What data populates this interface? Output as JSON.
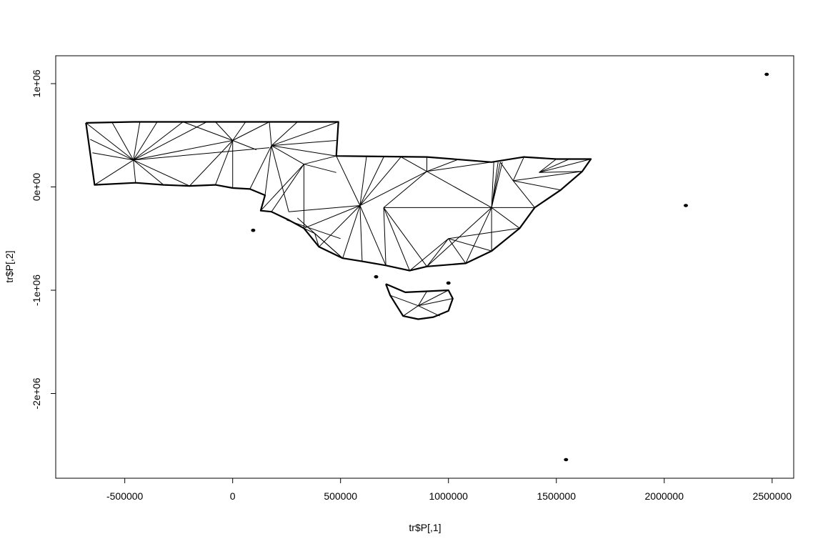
{
  "chart_data": {
    "type": "line",
    "title": "",
    "xlabel": "tr$P[,1]",
    "ylabel": "tr$P[,2]",
    "xlim": [
      -820000,
      2600000
    ],
    "ylim": [
      -2820000,
      1270000
    ],
    "x_ticks": [
      {
        "value": -500000,
        "label": "-500000"
      },
      {
        "value": 0,
        "label": "0"
      },
      {
        "value": 500000,
        "label": "500000"
      },
      {
        "value": 1000000,
        "label": "1000000"
      },
      {
        "value": 1500000,
        "label": "1500000"
      },
      {
        "value": 2000000,
        "label": "2000000"
      },
      {
        "value": 2500000,
        "label": "2500000"
      }
    ],
    "y_ticks": [
      {
        "value": 1000000,
        "label": "1e+06"
      },
      {
        "value": 0,
        "label": "0e+00"
      },
      {
        "value": -1000000,
        "label": "-1e+06"
      },
      {
        "value": -2000000,
        "label": "-2e+06"
      }
    ],
    "grid": false,
    "legend": "none",
    "line_color": "#000000",
    "series": [
      {
        "part": "mainland-outline",
        "x": [
          -680000,
          -460000,
          -230000,
          170000,
          490000,
          480000,
          900000,
          1200000,
          1350000,
          1500000,
          1560000,
          1660000,
          1620000,
          1520000,
          1400000,
          1330000,
          1200000,
          1080000,
          900000,
          820000,
          710000,
          600000,
          510000,
          400000,
          330000,
          260000,
          180000,
          130000,
          150000,
          80000,
          0,
          -80000,
          -200000,
          -320000,
          -450000,
          -640000,
          -680000
        ],
        "y": [
          620000,
          630000,
          630000,
          630000,
          630000,
          300000,
          290000,
          240000,
          290000,
          270000,
          270000,
          270000,
          150000,
          -30000,
          -200000,
          -400000,
          -620000,
          -740000,
          -770000,
          -810000,
          -760000,
          -720000,
          -690000,
          -580000,
          -400000,
          -320000,
          -240000,
          -230000,
          -80000,
          -20000,
          -10000,
          20000,
          10000,
          20000,
          40000,
          20000,
          620000
        ]
      },
      {
        "part": "tasmania-outline",
        "x": [
          710000,
          800000,
          900000,
          1000000,
          1020000,
          1000000,
          930000,
          860000,
          790000,
          760000,
          730000,
          710000
        ],
        "y": [
          -940000,
          -1020000,
          -1010000,
          -1000000,
          -1080000,
          -1200000,
          -1260000,
          -1280000,
          -1250000,
          -1150000,
          -1050000,
          -940000
        ]
      }
    ],
    "islands": [
      {
        "x": 2475000,
        "y": 1090000
      },
      {
        "x": 2100000,
        "y": -180000
      },
      {
        "x": 1545000,
        "y": -2640000
      },
      {
        "x": 665000,
        "y": -870000
      },
      {
        "x": 1000000,
        "y": -930000
      },
      {
        "x": 95000,
        "y": -420000
      }
    ],
    "triangulation_edges": [
      [
        [
          -460000,
          260000
        ],
        [
          -680000,
          620000
        ]
      ],
      [
        [
          -460000,
          260000
        ],
        [
          -560000,
          630000
        ]
      ],
      [
        [
          -460000,
          260000
        ],
        [
          -430000,
          630000
        ]
      ],
      [
        [
          -460000,
          260000
        ],
        [
          -350000,
          630000
        ]
      ],
      [
        [
          -460000,
          260000
        ],
        [
          -230000,
          630000
        ]
      ],
      [
        [
          -460000,
          260000
        ],
        [
          -640000,
          20000
        ]
      ],
      [
        [
          -460000,
          260000
        ],
        [
          -450000,
          40000
        ]
      ],
      [
        [
          -460000,
          260000
        ],
        [
          -320000,
          20000
        ]
      ],
      [
        [
          -460000,
          260000
        ],
        [
          -200000,
          10000
        ]
      ],
      [
        [
          -460000,
          260000
        ],
        [
          170000,
          380000
        ]
      ],
      [
        [
          -460000,
          260000
        ],
        [
          -120000,
          630000
        ]
      ],
      [
        [
          -460000,
          260000
        ],
        [
          -660000,
          460000
        ]
      ],
      [
        [
          -460000,
          260000
        ],
        [
          -650000,
          330000
        ]
      ],
      [
        [
          0,
          450000
        ],
        [
          -230000,
          630000
        ]
      ],
      [
        [
          0,
          450000
        ],
        [
          -80000,
          630000
        ]
      ],
      [
        [
          0,
          450000
        ],
        [
          60000,
          630000
        ]
      ],
      [
        [
          0,
          450000
        ],
        [
          170000,
          630000
        ]
      ],
      [
        [
          0,
          450000
        ],
        [
          -200000,
          10000
        ]
      ],
      [
        [
          0,
          450000
        ],
        [
          -80000,
          20000
        ]
      ],
      [
        [
          0,
          450000
        ],
        [
          0,
          -10000
        ]
      ],
      [
        [
          0,
          450000
        ],
        [
          110000,
          360000
        ]
      ],
      [
        [
          0,
          450000
        ],
        [
          -460000,
          260000
        ]
      ],
      [
        [
          180000,
          400000
        ],
        [
          170000,
          630000
        ]
      ],
      [
        [
          180000,
          400000
        ],
        [
          300000,
          630000
        ]
      ],
      [
        [
          180000,
          400000
        ],
        [
          490000,
          630000
        ]
      ],
      [
        [
          180000,
          400000
        ],
        [
          480000,
          450000
        ]
      ],
      [
        [
          180000,
          400000
        ],
        [
          480000,
          300000
        ]
      ],
      [
        [
          180000,
          400000
        ],
        [
          80000,
          -20000
        ]
      ],
      [
        [
          180000,
          400000
        ],
        [
          150000,
          -80000
        ]
      ],
      [
        [
          180000,
          400000
        ],
        [
          260000,
          -240000
        ]
      ],
      [
        [
          330000,
          220000
        ],
        [
          180000,
          400000
        ]
      ],
      [
        [
          330000,
          220000
        ],
        [
          480000,
          300000
        ]
      ],
      [
        [
          330000,
          220000
        ],
        [
          130000,
          -230000
        ]
      ],
      [
        [
          330000,
          220000
        ],
        [
          180000,
          -240000
        ]
      ],
      [
        [
          330000,
          220000
        ],
        [
          330000,
          -400000
        ]
      ],
      [
        [
          330000,
          220000
        ],
        [
          480000,
          140000
        ]
      ],
      [
        [
          590000,
          -180000
        ],
        [
          480000,
          300000
        ]
      ],
      [
        [
          590000,
          -180000
        ],
        [
          620000,
          290000
        ]
      ],
      [
        [
          590000,
          -180000
        ],
        [
          700000,
          290000
        ]
      ],
      [
        [
          590000,
          -180000
        ],
        [
          780000,
          290000
        ]
      ],
      [
        [
          590000,
          -180000
        ],
        [
          260000,
          -240000
        ]
      ],
      [
        [
          590000,
          -180000
        ],
        [
          330000,
          -400000
        ]
      ],
      [
        [
          590000,
          -180000
        ],
        [
          400000,
          -580000
        ]
      ],
      [
        [
          590000,
          -180000
        ],
        [
          510000,
          -690000
        ]
      ],
      [
        [
          590000,
          -180000
        ],
        [
          600000,
          -720000
        ]
      ],
      [
        [
          590000,
          -180000
        ],
        [
          710000,
          -760000
        ]
      ],
      [
        [
          900000,
          150000
        ],
        [
          780000,
          290000
        ]
      ],
      [
        [
          900000,
          150000
        ],
        [
          900000,
          290000
        ]
      ],
      [
        [
          900000,
          150000
        ],
        [
          1050000,
          270000
        ]
      ],
      [
        [
          900000,
          150000
        ],
        [
          1200000,
          240000
        ]
      ],
      [
        [
          900000,
          150000
        ],
        [
          700000,
          -200000
        ]
      ],
      [
        [
          900000,
          150000
        ],
        [
          1200000,
          -200000
        ]
      ],
      [
        [
          900000,
          150000
        ],
        [
          590000,
          -180000
        ]
      ],
      [
        [
          700000,
          -200000
        ],
        [
          1200000,
          -200000
        ]
      ],
      [
        [
          700000,
          -200000
        ],
        [
          820000,
          -810000
        ]
      ],
      [
        [
          700000,
          -200000
        ],
        [
          710000,
          -760000
        ]
      ],
      [
        [
          700000,
          -200000
        ],
        [
          900000,
          -770000
        ]
      ],
      [
        [
          1200000,
          -200000
        ],
        [
          900000,
          -770000
        ]
      ],
      [
        [
          1200000,
          -200000
        ],
        [
          1080000,
          -740000
        ]
      ],
      [
        [
          1200000,
          -200000
        ],
        [
          1200000,
          -620000
        ]
      ],
      [
        [
          1200000,
          -200000
        ],
        [
          1330000,
          -400000
        ]
      ],
      [
        [
          1200000,
          -200000
        ],
        [
          1400000,
          -200000
        ]
      ],
      [
        [
          1200000,
          -200000
        ],
        [
          1240000,
          240000
        ]
      ],
      [
        [
          1200000,
          -200000
        ],
        [
          1210000,
          240000
        ]
      ],
      [
        [
          1200000,
          -200000
        ],
        [
          1230000,
          240000
        ]
      ],
      [
        [
          1200000,
          -200000
        ],
        [
          1250000,
          240000
        ]
      ],
      [
        [
          1300000,
          60000
        ],
        [
          1240000,
          240000
        ]
      ],
      [
        [
          1300000,
          60000
        ],
        [
          1350000,
          290000
        ]
      ],
      [
        [
          1300000,
          60000
        ],
        [
          1520000,
          -30000
        ]
      ],
      [
        [
          1300000,
          60000
        ],
        [
          1400000,
          -200000
        ]
      ],
      [
        [
          1300000,
          60000
        ],
        [
          1620000,
          150000
        ]
      ],
      [
        [
          1420000,
          140000
        ],
        [
          1500000,
          270000
        ]
      ],
      [
        [
          1420000,
          140000
        ],
        [
          1560000,
          270000
        ]
      ],
      [
        [
          1420000,
          140000
        ],
        [
          1660000,
          270000
        ]
      ],
      [
        [
          1420000,
          140000
        ],
        [
          1620000,
          150000
        ]
      ],
      [
        [
          1000000,
          -500000
        ],
        [
          1080000,
          -740000
        ]
      ],
      [
        [
          1000000,
          -500000
        ],
        [
          900000,
          -770000
        ]
      ],
      [
        [
          1000000,
          -500000
        ],
        [
          1200000,
          -620000
        ]
      ],
      [
        [
          1000000,
          -500000
        ],
        [
          1330000,
          -400000
        ]
      ],
      [
        [
          1000000,
          -500000
        ],
        [
          820000,
          -810000
        ]
      ],
      [
        [
          380000,
          -450000
        ],
        [
          330000,
          -400000
        ]
      ],
      [
        [
          380000,
          -450000
        ],
        [
          510000,
          -690000
        ]
      ],
      [
        [
          380000,
          -450000
        ],
        [
          400000,
          -580000
        ]
      ],
      [
        [
          300000,
          -300000
        ],
        [
          510000,
          -690000
        ]
      ],
      [
        [
          250000,
          -320000
        ],
        [
          500000,
          -500000
        ]
      ],
      [
        [
          860000,
          -1150000
        ],
        [
          730000,
          -1050000
        ]
      ],
      [
        [
          860000,
          -1150000
        ],
        [
          1000000,
          -1000000
        ]
      ],
      [
        [
          860000,
          -1150000
        ],
        [
          960000,
          -1250000
        ]
      ],
      [
        [
          860000,
          -1150000
        ],
        [
          790000,
          -1250000
        ]
      ],
      [
        [
          860000,
          -1150000
        ],
        [
          900000,
          -1010000
        ]
      ],
      [
        [
          860000,
          -1150000
        ],
        [
          1020000,
          -1080000
        ]
      ]
    ]
  }
}
